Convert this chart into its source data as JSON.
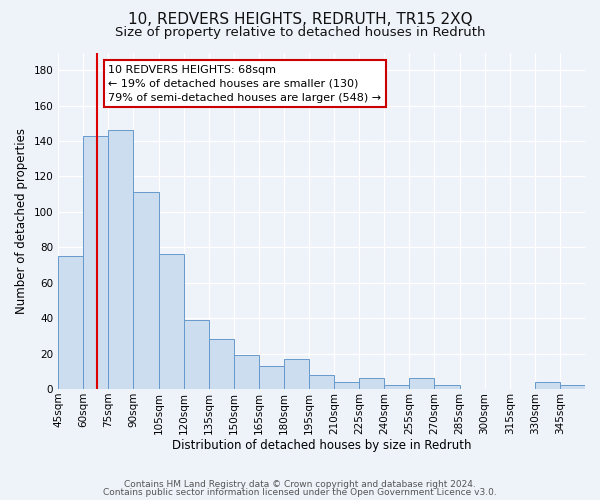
{
  "title": "10, REDVERS HEIGHTS, REDRUTH, TR15 2XQ",
  "subtitle": "Size of property relative to detached houses in Redruth",
  "xlabel": "Distribution of detached houses by size in Redruth",
  "ylabel": "Number of detached properties",
  "footer1": "Contains HM Land Registry data © Crown copyright and database right 2024.",
  "footer2": "Contains public sector information licensed under the Open Government Licence v3.0.",
  "bin_labels": [
    "45sqm",
    "60sqm",
    "75sqm",
    "90sqm",
    "105sqm",
    "120sqm",
    "135sqm",
    "150sqm",
    "165sqm",
    "180sqm",
    "195sqm",
    "210sqm",
    "225sqm",
    "240sqm",
    "255sqm",
    "270sqm",
    "285sqm",
    "300sqm",
    "315sqm",
    "330sqm",
    "345sqm"
  ],
  "bin_edges": [
    45,
    60,
    75,
    90,
    105,
    120,
    135,
    150,
    165,
    180,
    195,
    210,
    225,
    240,
    255,
    270,
    285,
    300,
    315,
    330,
    345,
    360
  ],
  "bar_values": [
    75,
    143,
    146,
    111,
    76,
    39,
    28,
    19,
    13,
    17,
    8,
    4,
    6,
    2,
    6,
    2,
    0,
    0,
    0,
    4,
    2
  ],
  "bar_color": "#ccddf0",
  "bar_edge_color": "#6699cc",
  "property_size": 68,
  "annotation_title": "10 REDVERS HEIGHTS: 68sqm",
  "annotation_line1": "← 19% of detached houses are smaller (130)",
  "annotation_line2": "79% of semi-detached houses are larger (548) →",
  "annotation_box_color": "#ffffff",
  "annotation_box_edge": "#cc0000",
  "red_line_color": "#dd0000",
  "ylim": [
    0,
    190
  ],
  "yticks": [
    0,
    20,
    40,
    60,
    80,
    100,
    120,
    140,
    160,
    180
  ],
  "background_color": "#eef2f9",
  "grid_color": "#ffffff",
  "title_fontsize": 11,
  "subtitle_fontsize": 9.5,
  "axis_label_fontsize": 8.5,
  "tick_fontsize": 7.5,
  "annotation_fontsize": 8,
  "footer_fontsize": 6.5
}
